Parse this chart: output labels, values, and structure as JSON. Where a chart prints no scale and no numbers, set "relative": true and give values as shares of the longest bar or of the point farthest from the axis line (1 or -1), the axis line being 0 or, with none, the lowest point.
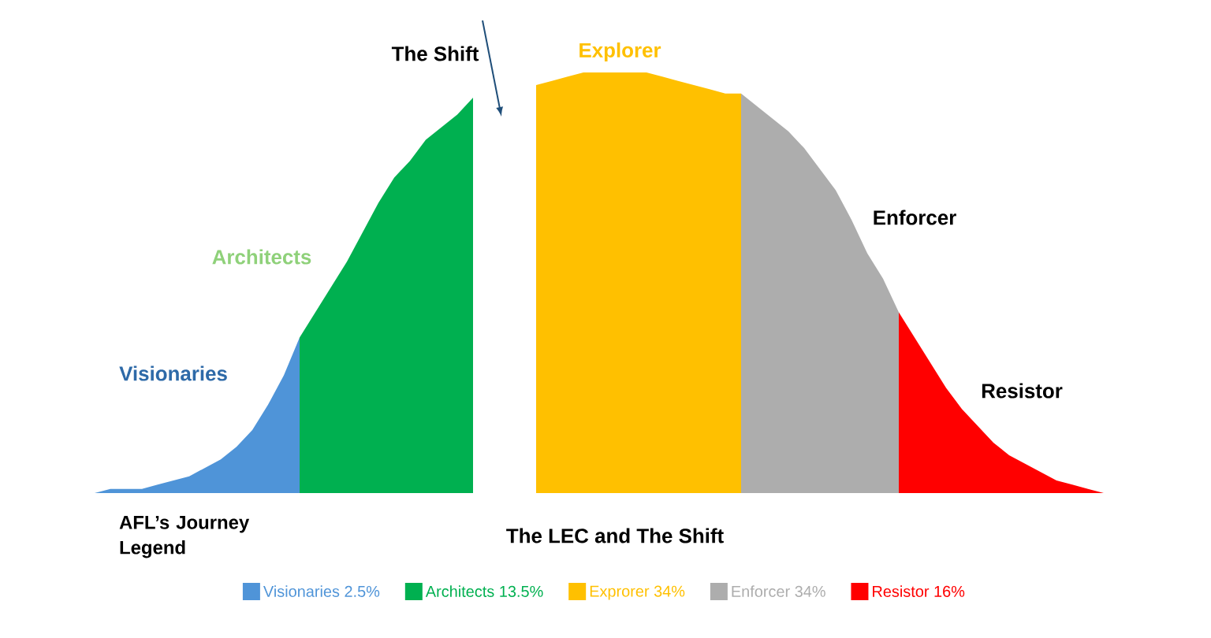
{
  "chart_data": {
    "type": "area",
    "relative": true,
    "title": "The LEC and The Shift",
    "legend_title": "AFL’s  Journey Legend",
    "legend": "bottom",
    "annotations": [
      "The Shift",
      "Visionaries",
      "Architects",
      "Explorer",
      "Enforcer",
      "Resistor"
    ],
    "categories": [
      null,
      null,
      null,
      null,
      null,
      null,
      null,
      null,
      null,
      null,
      null,
      null,
      null,
      null,
      null,
      null,
      null,
      null,
      null,
      null,
      null,
      null,
      null,
      null,
      null,
      null,
      null,
      null,
      null,
      null,
      null,
      null,
      null,
      null,
      null,
      null,
      null,
      null,
      null,
      null,
      null,
      null,
      null,
      null,
      null,
      null,
      null,
      null,
      null,
      null,
      null,
      null,
      null,
      null,
      null,
      null,
      null,
      null,
      null,
      null,
      null,
      null,
      null,
      null,
      null,
      null,
      null
    ],
    "series": [
      {
        "name": "Visionaries 2.5%",
        "color": "#4f94d8",
        "values": [
          0,
          0,
          0.01,
          0.01,
          0.01,
          0.02,
          0.03,
          0.04,
          0.06,
          0.08,
          0.11,
          0.15,
          0.21,
          0.28,
          0.37,
          null,
          null,
          null,
          null,
          null,
          null,
          null,
          null,
          null,
          null,
          null,
          null,
          null,
          null,
          null,
          null,
          null,
          null,
          null,
          null,
          null,
          null,
          null,
          null,
          null,
          null,
          null,
          null,
          null,
          null,
          null,
          null,
          null,
          null,
          null,
          null,
          null,
          null,
          null,
          null,
          null,
          null,
          null,
          null,
          null,
          null,
          null,
          null,
          null,
          null,
          null,
          null
        ]
      },
      {
        "name": "Architects 13.5%",
        "color": "#00b050",
        "values": [
          null,
          null,
          null,
          null,
          null,
          null,
          null,
          null,
          null,
          null,
          null,
          null,
          null,
          null,
          0.37,
          0.43,
          0.49,
          0.55,
          0.62,
          0.69,
          0.75,
          0.79,
          0.84,
          0.87,
          0.9,
          0.94,
          null,
          null,
          null,
          null,
          null,
          null,
          null,
          null,
          null,
          null,
          null,
          null,
          null,
          null,
          null,
          null,
          null,
          null,
          null,
          null,
          null,
          null,
          null,
          null,
          null,
          null,
          null,
          null,
          null,
          null,
          null,
          null,
          null,
          null,
          null,
          null,
          null,
          null,
          null,
          null,
          null
        ]
      },
      {
        "name": "Exprorer 34%",
        "color": "#ffc000",
        "values": [
          null,
          null,
          null,
          null,
          null,
          null,
          null,
          null,
          null,
          null,
          null,
          null,
          null,
          null,
          null,
          null,
          null,
          null,
          null,
          null,
          null,
          null,
          null,
          null,
          null,
          null,
          null,
          null,
          null,
          0.97,
          0.98,
          0.99,
          1,
          1,
          1,
          1,
          1,
          0.99,
          0.98,
          0.97,
          0.96,
          0.95,
          0.95,
          null,
          null,
          null,
          null,
          null,
          null,
          null,
          null,
          null,
          null,
          null,
          null,
          null,
          null,
          null,
          null,
          null,
          null,
          null,
          null,
          null,
          null,
          null,
          null
        ]
      },
      {
        "name": "Enforcer 34%",
        "color": "#adadad",
        "values": [
          null,
          null,
          null,
          null,
          null,
          null,
          null,
          null,
          null,
          null,
          null,
          null,
          null,
          null,
          null,
          null,
          null,
          null,
          null,
          null,
          null,
          null,
          null,
          null,
          null,
          null,
          null,
          null,
          null,
          null,
          null,
          null,
          null,
          null,
          null,
          null,
          null,
          null,
          null,
          null,
          null,
          null,
          0.95,
          0.92,
          0.89,
          0.86,
          0.82,
          0.77,
          0.72,
          0.65,
          0.57,
          0.51,
          0.43,
          null,
          null,
          null,
          null,
          null,
          null,
          null,
          null,
          null,
          null,
          null,
          null,
          null,
          null
        ]
      },
      {
        "name": "Resistor 16%",
        "color": "#ff0000",
        "values": [
          null,
          null,
          null,
          null,
          null,
          null,
          null,
          null,
          null,
          null,
          null,
          null,
          null,
          null,
          null,
          null,
          null,
          null,
          null,
          null,
          null,
          null,
          null,
          null,
          null,
          null,
          null,
          null,
          null,
          null,
          null,
          null,
          null,
          null,
          null,
          null,
          null,
          null,
          null,
          null,
          null,
          null,
          null,
          null,
          null,
          null,
          null,
          null,
          null,
          null,
          null,
          null,
          0.43,
          0.37,
          0.31,
          0.25,
          0.2,
          0.16,
          0.12,
          0.09,
          0.07,
          0.05,
          0.03,
          0.02,
          0.01,
          0,
          0
        ]
      }
    ]
  }
}
